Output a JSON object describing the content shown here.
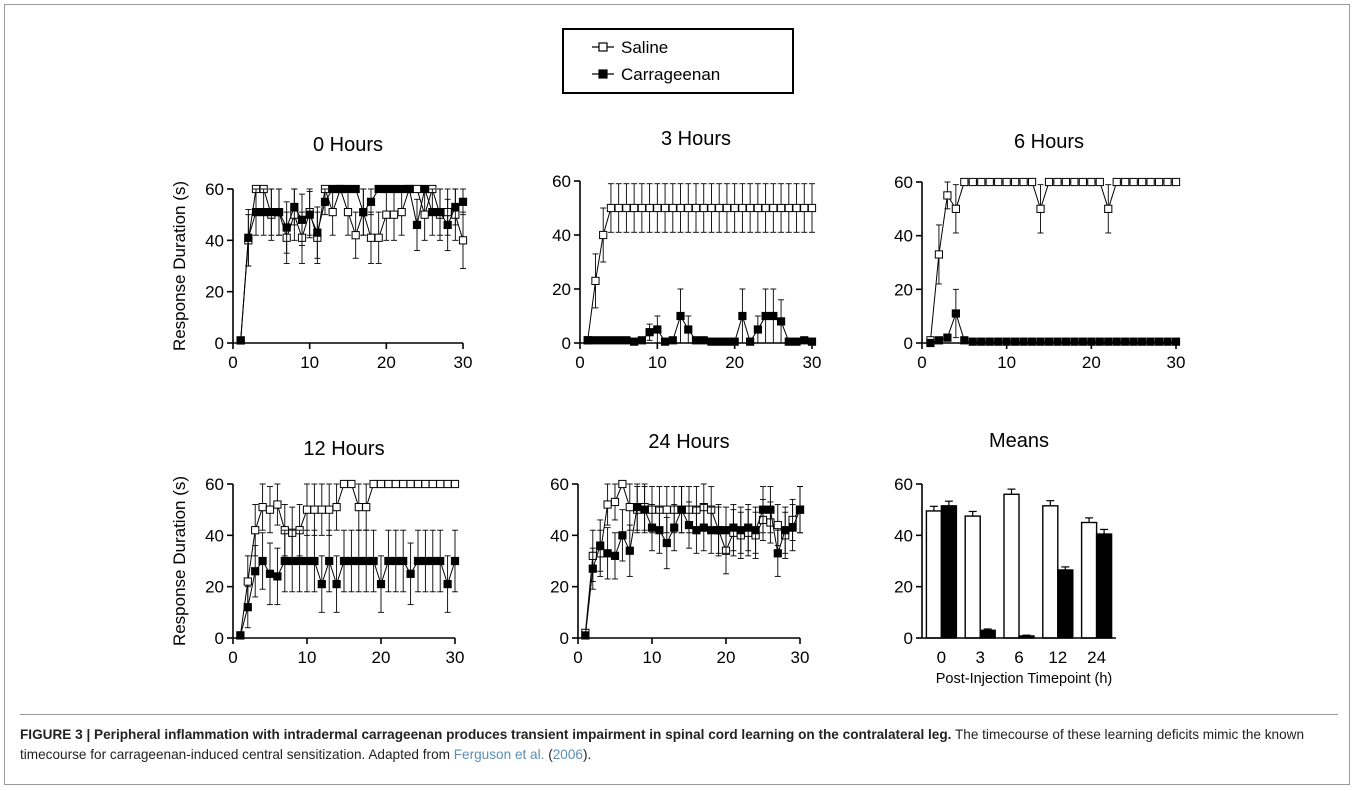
{
  "legend": {
    "items": [
      {
        "label": "Saline",
        "marker": "open-square"
      },
      {
        "label": "Carrageenan",
        "marker": "filled-square"
      }
    ]
  },
  "chart_data": [
    {
      "type": "line",
      "title": "0 Hours",
      "ylabel": "Response Duration (s)",
      "xlabel": "",
      "xlim": [
        0,
        30
      ],
      "ylim": [
        0,
        60
      ],
      "xticks": [
        0,
        10,
        20,
        30
      ],
      "yticks": [
        0,
        20,
        40,
        60
      ],
      "series": [
        {
          "name": "Saline",
          "marker": "open-square",
          "x": [
            1,
            2,
            3,
            4,
            5,
            6,
            7,
            8,
            9,
            10,
            11,
            12,
            13,
            14,
            15,
            16,
            17,
            18,
            19,
            20,
            21,
            22,
            23,
            24,
            25,
            26,
            27,
            28,
            29,
            30
          ],
          "y": [
            1,
            40,
            60,
            60,
            50,
            51,
            41,
            50,
            41,
            51,
            41,
            60,
            51,
            60,
            51,
            42,
            51,
            41,
            41,
            50,
            50,
            51,
            60,
            60,
            50,
            60,
            50,
            51,
            50,
            40
          ],
          "err": [
            0,
            10,
            0,
            0,
            10,
            9,
            10,
            10,
            10,
            9,
            10,
            0,
            9,
            0,
            9,
            9,
            9,
            10,
            10,
            10,
            10,
            9,
            0,
            0,
            10,
            0,
            10,
            9,
            10,
            11
          ]
        },
        {
          "name": "Carrageenan",
          "marker": "filled-square",
          "x": [
            1,
            2,
            3,
            4,
            5,
            6,
            7,
            8,
            9,
            10,
            11,
            12,
            13,
            14,
            15,
            16,
            17,
            18,
            19,
            20,
            21,
            22,
            23,
            24,
            25,
            26,
            27,
            28,
            29,
            30
          ],
          "y": [
            1,
            41,
            51,
            51,
            51,
            51,
            45,
            53,
            48,
            50,
            43,
            55,
            60,
            60,
            60,
            60,
            51,
            55,
            60,
            60,
            60,
            60,
            60,
            46,
            60,
            51,
            51,
            46,
            53,
            55
          ],
          "err": [
            0,
            11,
            9,
            9,
            9,
            9,
            10,
            7,
            10,
            9,
            10,
            5,
            0,
            0,
            0,
            0,
            9,
            5,
            0,
            0,
            0,
            0,
            0,
            10,
            0,
            9,
            9,
            10,
            7,
            5
          ]
        }
      ]
    },
    {
      "type": "line",
      "title": "3 Hours",
      "ylabel": "",
      "xlabel": "",
      "xlim": [
        0,
        30
      ],
      "ylim": [
        0,
        60
      ],
      "xticks": [
        0,
        10,
        20,
        30
      ],
      "yticks": [
        0,
        20,
        40,
        60
      ],
      "series": [
        {
          "name": "Saline",
          "marker": "open-square",
          "x": [
            1,
            2,
            3,
            4,
            5,
            6,
            7,
            8,
            9,
            10,
            11,
            12,
            13,
            14,
            15,
            16,
            17,
            18,
            19,
            20,
            21,
            22,
            23,
            24,
            25,
            26,
            27,
            28,
            29,
            30
          ],
          "y": [
            1,
            23,
            40,
            50,
            50,
            50,
            50,
            50,
            50,
            50,
            50,
            50,
            50,
            50,
            50,
            50,
            50,
            50,
            50,
            50,
            50,
            50,
            50,
            50,
            50,
            50,
            50,
            50,
            50,
            50
          ],
          "err": [
            0,
            10,
            10,
            9,
            9,
            9,
            9,
            9,
            9,
            9,
            9,
            9,
            9,
            9,
            9,
            9,
            9,
            9,
            9,
            9,
            9,
            9,
            9,
            9,
            9,
            9,
            9,
            9,
            9,
            9
          ]
        },
        {
          "name": "Carrageenan",
          "marker": "filled-square",
          "x": [
            1,
            2,
            3,
            4,
            5,
            6,
            7,
            8,
            9,
            10,
            11,
            12,
            13,
            14,
            15,
            16,
            17,
            18,
            19,
            20,
            21,
            22,
            23,
            24,
            25,
            26,
            27,
            28,
            29,
            30
          ],
          "y": [
            1,
            1,
            1,
            1,
            1,
            1,
            0.5,
            1,
            4,
            5,
            0.5,
            1,
            10,
            5,
            1,
            1,
            0.5,
            0.5,
            0.5,
            0.5,
            10,
            0.5,
            5,
            10,
            10,
            8,
            0.5,
            0.5,
            1,
            0.5
          ],
          "err": [
            0,
            0,
            0,
            0,
            0,
            0,
            0,
            0,
            3,
            5,
            0,
            0,
            10,
            5,
            0,
            0,
            0,
            0,
            0,
            0,
            10,
            0,
            5,
            10,
            10,
            8,
            0,
            0,
            0,
            0
          ]
        }
      ]
    },
    {
      "type": "line",
      "title": "6 Hours",
      "ylabel": "",
      "xlabel": "",
      "xlim": [
        0,
        30
      ],
      "ylim": [
        0,
        60
      ],
      "xticks": [
        0,
        10,
        20,
        30
      ],
      "yticks": [
        0,
        20,
        40,
        60
      ],
      "series": [
        {
          "name": "Saline",
          "marker": "open-square",
          "x": [
            1,
            2,
            3,
            4,
            5,
            6,
            7,
            8,
            9,
            10,
            11,
            12,
            13,
            14,
            15,
            16,
            17,
            18,
            19,
            20,
            21,
            22,
            23,
            24,
            25,
            26,
            27,
            28,
            29,
            30
          ],
          "y": [
            1,
            33,
            55,
            50,
            60,
            60,
            60,
            60,
            60,
            60,
            60,
            60,
            60,
            50,
            60,
            60,
            60,
            60,
            60,
            60,
            60,
            50,
            60,
            60,
            60,
            60,
            60,
            60,
            60,
            60
          ],
          "err": [
            0,
            11,
            5,
            9,
            0,
            0,
            0,
            0,
            0,
            0,
            0,
            0,
            0,
            9,
            0,
            0,
            0,
            0,
            0,
            0,
            0,
            9,
            0,
            0,
            0,
            0,
            0,
            0,
            0,
            0
          ]
        },
        {
          "name": "Carrageenan",
          "marker": "filled-square",
          "x": [
            1,
            2,
            3,
            4,
            5,
            6,
            7,
            8,
            9,
            10,
            11,
            12,
            13,
            14,
            15,
            16,
            17,
            18,
            19,
            20,
            21,
            22,
            23,
            24,
            25,
            26,
            27,
            28,
            29,
            30
          ],
          "y": [
            0,
            1,
            2,
            11,
            1,
            0.5,
            0.5,
            0.5,
            0.5,
            0.5,
            0.5,
            0.5,
            0.5,
            0.5,
            0.5,
            0.5,
            0.5,
            0.5,
            0.5,
            0.5,
            0.5,
            0.5,
            0.5,
            0.5,
            0.5,
            0.5,
            0.5,
            0.5,
            0.5,
            0.5
          ],
          "err": [
            0,
            0,
            0,
            9,
            0,
            0,
            0,
            0,
            0,
            0,
            0,
            0,
            0,
            0,
            0,
            0,
            0,
            0,
            0,
            0,
            0,
            0,
            0,
            0,
            0,
            0,
            0,
            0,
            0,
            0
          ]
        }
      ]
    },
    {
      "type": "line",
      "title": "12 Hours",
      "ylabel": "Response Duration (s)",
      "xlabel": "",
      "xlim": [
        0,
        30
      ],
      "ylim": [
        0,
        60
      ],
      "xticks": [
        0,
        10,
        20,
        30
      ],
      "yticks": [
        0,
        20,
        40,
        60
      ],
      "series": [
        {
          "name": "Saline",
          "marker": "open-square",
          "x": [
            1,
            2,
            3,
            4,
            5,
            6,
            7,
            8,
            9,
            10,
            11,
            12,
            13,
            14,
            15,
            16,
            17,
            18,
            19,
            20,
            21,
            22,
            23,
            24,
            25,
            26,
            27,
            28,
            29,
            30
          ],
          "y": [
            1,
            22,
            42,
            51,
            50,
            52,
            42,
            41,
            42,
            50,
            50,
            50,
            50,
            51,
            60,
            60,
            51,
            51,
            60,
            60,
            60,
            60,
            60,
            60,
            60,
            60,
            60,
            60,
            60,
            60
          ],
          "err": [
            0,
            10,
            10,
            9,
            9,
            8,
            10,
            10,
            10,
            10,
            10,
            10,
            10,
            9,
            0,
            0,
            9,
            9,
            0,
            0,
            0,
            0,
            0,
            0,
            0,
            0,
            0,
            0,
            0,
            0
          ]
        },
        {
          "name": "Carrageenan",
          "marker": "filled-square",
          "x": [
            1,
            2,
            3,
            4,
            5,
            6,
            7,
            8,
            9,
            10,
            11,
            12,
            13,
            14,
            15,
            16,
            17,
            18,
            19,
            20,
            21,
            22,
            23,
            24,
            25,
            26,
            27,
            28,
            29,
            30
          ],
          "y": [
            1,
            12,
            26,
            30,
            25,
            24,
            30,
            30,
            30,
            30,
            30,
            21,
            30,
            21,
            30,
            30,
            30,
            30,
            30,
            21,
            30,
            30,
            30,
            25,
            30,
            30,
            30,
            30,
            21,
            30
          ],
          "err": [
            0,
            8,
            10,
            11,
            12,
            11,
            12,
            12,
            12,
            12,
            12,
            11,
            12,
            11,
            12,
            12,
            12,
            12,
            12,
            11,
            12,
            12,
            12,
            12,
            12,
            12,
            12,
            12,
            11,
            12
          ]
        }
      ]
    },
    {
      "type": "line",
      "title": "24 Hours",
      "ylabel": "",
      "xlabel": "",
      "xlim": [
        0,
        30
      ],
      "ylim": [
        0,
        60
      ],
      "xticks": [
        0,
        10,
        20,
        30
      ],
      "yticks": [
        0,
        20,
        40,
        60
      ],
      "series": [
        {
          "name": "Saline",
          "marker": "open-square",
          "x": [
            1,
            2,
            3,
            4,
            5,
            6,
            7,
            8,
            9,
            10,
            11,
            12,
            13,
            14,
            15,
            16,
            17,
            18,
            19,
            20,
            21,
            22,
            23,
            24,
            25,
            26,
            27,
            28,
            29,
            30
          ],
          "y": [
            2,
            32,
            33,
            52,
            53,
            60,
            51,
            50,
            51,
            50,
            50,
            50,
            50,
            50,
            50,
            50,
            51,
            50,
            42,
            34,
            41,
            40,
            41,
            40,
            46,
            45,
            44,
            40,
            46,
            50
          ],
          "err": [
            0,
            10,
            9,
            8,
            7,
            0,
            9,
            9,
            9,
            9,
            9,
            9,
            9,
            9,
            9,
            9,
            9,
            9,
            10,
            9,
            9,
            9,
            9,
            9,
            8,
            8,
            8,
            9,
            8,
            9
          ]
        },
        {
          "name": "Carrageenan",
          "marker": "filled-square",
          "x": [
            1,
            2,
            3,
            4,
            5,
            6,
            7,
            8,
            9,
            10,
            11,
            12,
            13,
            14,
            15,
            16,
            17,
            18,
            19,
            20,
            21,
            22,
            23,
            24,
            25,
            26,
            27,
            28,
            29,
            30
          ],
          "y": [
            1,
            27,
            36,
            33,
            32,
            40,
            34,
            51,
            50,
            43,
            42,
            37,
            43,
            50,
            44,
            42,
            43,
            42,
            42,
            42,
            43,
            42,
            43,
            42,
            50,
            50,
            33,
            42,
            43,
            50
          ],
          "err": [
            0,
            8,
            10,
            10,
            9,
            10,
            10,
            9,
            9,
            9,
            9,
            10,
            9,
            9,
            9,
            9,
            9,
            9,
            9,
            9,
            9,
            9,
            9,
            9,
            9,
            9,
            9,
            9,
            9,
            9
          ]
        }
      ]
    },
    {
      "type": "bar",
      "title": "Means",
      "ylabel": "",
      "xlabel": "Post-Injection Timepoint (h)",
      "ylim": [
        0,
        60
      ],
      "yticks": [
        0,
        20,
        40,
        60
      ],
      "categories": [
        "0",
        "3",
        "6",
        "12",
        "24"
      ],
      "series": [
        {
          "name": "Saline",
          "fill": "#ffffff",
          "values": [
            49.5,
            47.5,
            56,
            51.5,
            45
          ],
          "err": [
            1.8,
            1.8,
            2,
            2,
            1.8
          ]
        },
        {
          "name": "Carrageenan",
          "fill": "#000000",
          "values": [
            51.5,
            3,
            0.8,
            26.5,
            40.5
          ],
          "err": [
            1.8,
            0.5,
            0.3,
            1.2,
            1.8
          ]
        }
      ]
    }
  ],
  "caption": {
    "title": "FIGURE 3 | Peripheral inflammation with intradermal carrageenan produces transient impairment in spinal cord learning on the contralateral leg.",
    "body": " The timecourse of these learning deficits mimic the known timecourse for carrageenan-induced central sensitization. Adapted from ",
    "cite_author": "Ferguson et al.",
    "cite_open": " (",
    "cite_year": "2006",
    "cite_close": ")."
  },
  "colors": {
    "ink": "#000000",
    "frame": "#9a9a9a",
    "citation": "#5e8fb5"
  }
}
